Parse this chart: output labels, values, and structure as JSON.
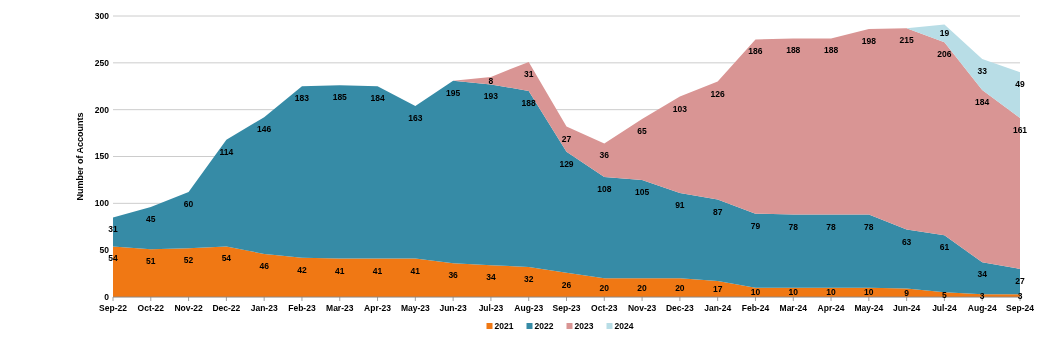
{
  "chart_data": {
    "type": "area",
    "stacked": true,
    "ylabel": "Number of Accounts",
    "categories": [
      "Sep-22",
      "Oct-22",
      "Nov-22",
      "Dec-22",
      "Jan-23",
      "Feb-23",
      "Mar-23",
      "Apr-23",
      "May-23",
      "Jun-23",
      "Jul-23",
      "Aug-23",
      "Sep-23",
      "Oct-23",
      "Nov-23",
      "Dec-23",
      "Jan-24",
      "Feb-24",
      "Mar-24",
      "Apr-24",
      "May-24",
      "Jun-24",
      "Jul-24",
      "Aug-24",
      "Sep-24"
    ],
    "series": [
      {
        "name": "2021",
        "color": "#f07814",
        "values": [
          54,
          51,
          52,
          54,
          46,
          42,
          41,
          41,
          41,
          36,
          34,
          32,
          26,
          20,
          20,
          20,
          17,
          10,
          10,
          10,
          10,
          9,
          5,
          3,
          3
        ]
      },
      {
        "name": "2022",
        "color": "#368ba6",
        "values": [
          31,
          45,
          60,
          114,
          146,
          183,
          185,
          184,
          163,
          195,
          193,
          188,
          129,
          108,
          105,
          91,
          87,
          79,
          78,
          78,
          78,
          63,
          61,
          34,
          27
        ]
      },
      {
        "name": "2023",
        "color": "#d99594",
        "values": [
          null,
          null,
          null,
          null,
          null,
          null,
          null,
          null,
          null,
          0,
          8,
          31,
          27,
          36,
          65,
          103,
          126,
          186,
          188,
          188,
          198,
          215,
          206,
          184,
          161
        ],
        "value_labels": [
          null,
          null,
          null,
          null,
          null,
          null,
          null,
          null,
          null,
          null,
          "8",
          "31",
          "27",
          "36",
          "65",
          "103",
          "126",
          "186",
          "188",
          "188",
          "198",
          "215",
          "206",
          "184",
          "161"
        ]
      },
      {
        "name": "2024",
        "color": "#b8dde6",
        "values": [
          null,
          null,
          null,
          null,
          null,
          null,
          null,
          null,
          null,
          null,
          null,
          null,
          null,
          null,
          null,
          null,
          null,
          null,
          null,
          null,
          null,
          0,
          19,
          33,
          49
        ],
        "value_labels": [
          null,
          null,
          null,
          null,
          null,
          null,
          null,
          null,
          null,
          null,
          null,
          null,
          null,
          null,
          null,
          null,
          null,
          null,
          null,
          null,
          null,
          null,
          "19",
          "33",
          "49"
        ]
      }
    ],
    "data_labels": true,
    "ylim": [
      0,
      300
    ],
    "yticks": [
      0,
      50,
      100,
      150,
      200,
      250,
      300
    ],
    "grid": "y",
    "legend": "bottom"
  }
}
